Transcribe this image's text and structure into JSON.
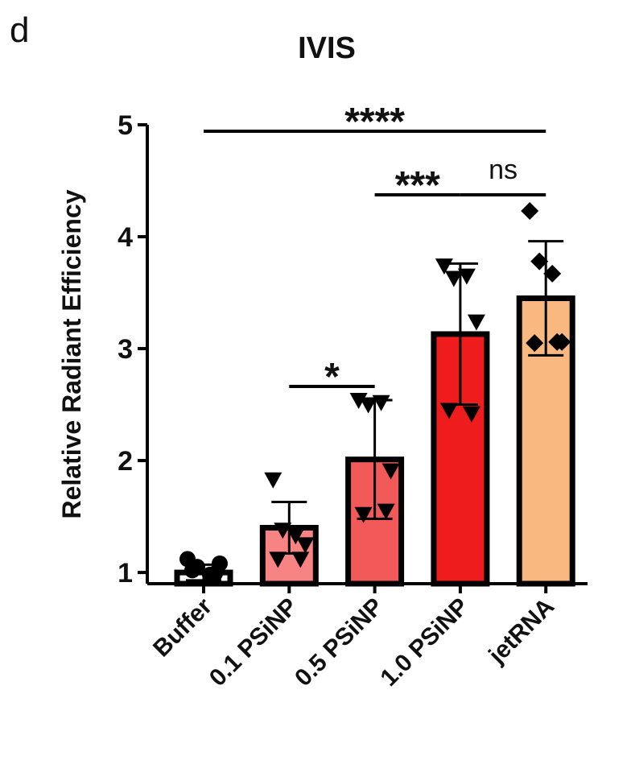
{
  "panel_label": "d",
  "chart_data": {
    "type": "bar",
    "title": "IVIS",
    "y_label": "Relative Radiant Efficiency",
    "categories": [
      "Buffer",
      "0.1 PSiNP",
      "0.5 PSiNP",
      "1.0 PSiNP",
      "jetRNA"
    ],
    "values": [
      1.0,
      1.4,
      2.01,
      3.13,
      3.45
    ],
    "errors": [
      0.07,
      0.23,
      0.53,
      0.63,
      0.51
    ],
    "colors": [
      "#ffffff",
      "#f88383",
      "#f25a5a",
      "#ee1c1c",
      "#f9b880"
    ],
    "markers": [
      "circle",
      "triangle-down",
      "triangle-down",
      "triangle-down",
      "diamond"
    ],
    "points": [
      [
        1.12,
        1.05,
        0.98,
        1.08,
        1.02,
        0.99
      ],
      [
        1.83,
        1.38,
        1.33,
        1.25,
        1.12,
        1.12
      ],
      [
        2.54,
        2.5,
        2.52,
        1.91,
        1.52,
        1.55
      ],
      [
        3.74,
        3.63,
        3.65,
        3.24,
        2.45,
        2.42
      ],
      [
        4.23,
        3.78,
        3.67,
        3.06,
        3.05,
        3.06
      ]
    ],
    "ylim": [
      0.9,
      5
    ],
    "yticks": [
      1,
      2,
      3,
      4,
      5
    ],
    "annotations": [
      {
        "text": "****",
        "from": 0,
        "to": 4
      },
      {
        "text": "***",
        "from": 2,
        "to": 3
      },
      {
        "text": "ns",
        "from": 3,
        "to": 4
      },
      {
        "text": "*",
        "from": 1,
        "to": 2
      }
    ]
  }
}
